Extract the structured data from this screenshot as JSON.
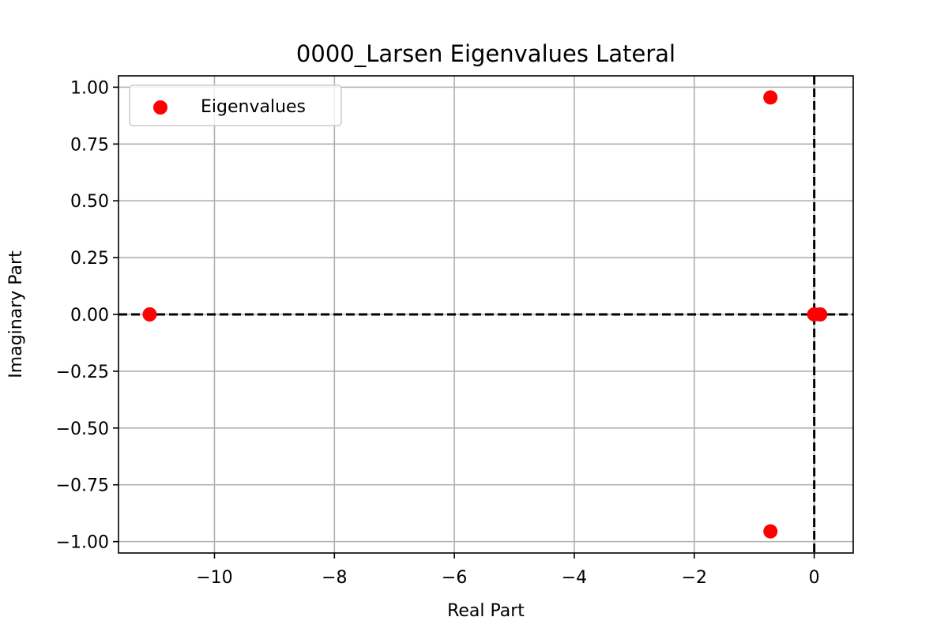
{
  "chart_data": {
    "type": "scatter",
    "title": "0000_Larsen Eigenvalues Lateral",
    "xlabel": "Real Part",
    "ylabel": "Imaginary Part",
    "xlim": [
      -11.6,
      0.65
    ],
    "ylim": [
      -1.05,
      1.05
    ],
    "xticks": [
      -10,
      -8,
      -6,
      -4,
      -2,
      0
    ],
    "xtick_labels": [
      "−10",
      "−8",
      "−6",
      "−4",
      "−2",
      "0"
    ],
    "yticks": [
      1.0,
      0.75,
      0.5,
      0.25,
      0.0,
      -0.25,
      -0.5,
      -0.75,
      -1.0
    ],
    "ytick_labels": [
      "1.00",
      "0.75",
      "0.50",
      "0.25",
      "0.00",
      "−0.25",
      "−0.50",
      "−0.75",
      "−1.00"
    ],
    "grid": true,
    "legend_position": "upper-left",
    "reference_lines": [
      {
        "orientation": "horizontal",
        "value": 0,
        "style": "dashed",
        "color": "#000000"
      },
      {
        "orientation": "vertical",
        "value": 0,
        "style": "dashed",
        "color": "#000000"
      }
    ],
    "series": [
      {
        "name": "Eigenvalues",
        "color": "#ff0000",
        "points": [
          {
            "x": -11.08,
            "y": 0.0
          },
          {
            "x": -0.73,
            "y": 0.955
          },
          {
            "x": -0.73,
            "y": -0.955
          },
          {
            "x": 0.0,
            "y": 0.0
          },
          {
            "x": 0.1,
            "y": 0.0
          }
        ]
      }
    ]
  }
}
